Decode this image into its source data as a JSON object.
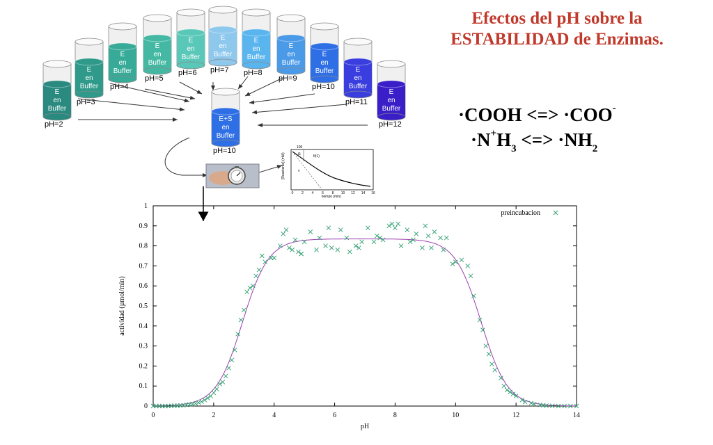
{
  "title": {
    "line1": "Efectos del pH sobre la",
    "line2": "ESTABILIDAD de Enzimas."
  },
  "equations": {
    "eq1": {
      "left": "·COOH <=> ·COO",
      "sup": "-"
    },
    "eq2": {
      "n": "·N",
      "sup": "+",
      "h": "H",
      "sub3": "3",
      "mid": " <=> ·NH",
      "sub2": "2"
    }
  },
  "cylinders": [
    {
      "ph_label": "pH=2",
      "lines": [
        "E",
        "en",
        "Buffer"
      ],
      "color": "#2a8a80"
    },
    {
      "ph_label": "pH=3",
      "lines": [
        "E",
        "en",
        "Buffer"
      ],
      "color": "#2f9a8a"
    },
    {
      "ph_label": "pH=4",
      "lines": [
        "E",
        "en",
        "Buffer"
      ],
      "color": "#38aa98"
    },
    {
      "ph_label": "pH=5",
      "lines": [
        "E",
        "en",
        "Buffer"
      ],
      "color": "#45b8a4"
    },
    {
      "ph_label": "pH=6",
      "lines": [
        "E",
        "en",
        "Buffer"
      ],
      "color": "#5ac8b8"
    },
    {
      "ph_label": "pH=7",
      "lines": [
        "E",
        "en",
        "Buffer"
      ],
      "color": "#8ec8ec"
    },
    {
      "ph_label": "pH=8",
      "lines": [
        "E",
        "en",
        "Buffer"
      ],
      "color": "#5ab4ee"
    },
    {
      "ph_label": "pH=9",
      "lines": [
        "E",
        "en",
        "Buffer"
      ],
      "color": "#4b9ae8"
    },
    {
      "ph_label": "pH=10",
      "lines": [
        "E",
        "en",
        "Buffer"
      ],
      "color": "#2f6fe6"
    },
    {
      "ph_label": "pH=11",
      "lines": [
        "E",
        "en",
        "Buffer"
      ],
      "color": "#3a3ede"
    },
    {
      "ph_label": "pH=12",
      "lines": [
        "E",
        "en",
        "Buffer"
      ],
      "color": "#3a1ec8"
    }
  ],
  "center_cylinder": {
    "ph_label": "pH=10",
    "lines": [
      "E+S",
      "en",
      "Buffer"
    ],
    "color": "#2f6fe6"
  },
  "mini_plot": {
    "ylabel": "[Reactante] (mM)",
    "xlabel": "tiempo (min)",
    "x_ticks": [
      "0",
      "2",
      "4",
      "6",
      "8",
      "10",
      "12",
      "14",
      "16"
    ],
    "y_ticks": [
      "100",
      "80",
      "60",
      "40",
      "20",
      "0"
    ],
    "annot1": "t1",
    "annot2": "f(t1)",
    "annot3": "v"
  },
  "icons": {
    "stopwatch": "stopwatch-hand-photo"
  },
  "chart_data": {
    "type": "scatter",
    "xlabel": "pH",
    "ylabel": "actividad (µmol/min)",
    "xlim": [
      0,
      14
    ],
    "ylim": [
      0,
      1
    ],
    "x_ticks": [
      "0",
      "2",
      "4",
      "6",
      "8",
      "10",
      "12",
      "14"
    ],
    "y_ticks": [
      "0",
      "0.1",
      "0.2",
      "0.3",
      "0.4",
      "0.5",
      "0.6",
      "0.7",
      "0.8",
      "0.9",
      "1"
    ],
    "grid": false,
    "legend_position": "top-right",
    "series": [
      {
        "name": "preincubacion",
        "marker": "x",
        "color": "#2e9e6e",
        "points": [
          [
            0,
            0
          ],
          [
            0.1,
            0
          ],
          [
            0.2,
            0
          ],
          [
            0.3,
            0
          ],
          [
            0.4,
            0
          ],
          [
            0.5,
            0
          ],
          [
            0.6,
            0.001
          ],
          [
            0.7,
            0.002
          ],
          [
            0.8,
            0.002
          ],
          [
            0.9,
            0.003
          ],
          [
            1,
            0.004
          ],
          [
            1.1,
            0.006
          ],
          [
            1.2,
            0.008
          ],
          [
            1.3,
            0.01
          ],
          [
            1.4,
            0.013
          ],
          [
            1.5,
            0.017
          ],
          [
            1.6,
            0.022
          ],
          [
            1.7,
            0.03
          ],
          [
            1.8,
            0.04
          ],
          [
            1.9,
            0.05
          ],
          [
            2,
            0.066
          ],
          [
            2.1,
            0.085
          ],
          [
            2.2,
            0.11
          ],
          [
            2.3,
            0.12
          ],
          [
            2.4,
            0.15
          ],
          [
            2.5,
            0.19
          ],
          [
            2.6,
            0.23
          ],
          [
            2.7,
            0.28
          ],
          [
            2.8,
            0.36
          ],
          [
            2.9,
            0.43
          ],
          [
            3.0,
            0.48
          ],
          [
            3.1,
            0.57
          ],
          [
            3.2,
            0.59
          ],
          [
            3.3,
            0.6
          ],
          [
            3.4,
            0.65
          ],
          [
            3.5,
            0.68
          ],
          [
            3.6,
            0.75
          ],
          [
            3.7,
            0.72
          ],
          [
            3.9,
            0.74
          ],
          [
            4.0,
            0.74
          ],
          [
            4.2,
            0.8
          ],
          [
            4.3,
            0.86
          ],
          [
            4.4,
            0.88
          ],
          [
            4.5,
            0.79
          ],
          [
            4.6,
            0.78
          ],
          [
            4.7,
            0.83
          ],
          [
            4.8,
            0.77
          ],
          [
            4.9,
            0.76
          ],
          [
            5.0,
            0.82
          ],
          [
            5.2,
            0.87
          ],
          [
            5.4,
            0.78
          ],
          [
            5.5,
            0.84
          ],
          [
            5.7,
            0.8
          ],
          [
            5.8,
            0.89
          ],
          [
            5.9,
            0.79
          ],
          [
            6.1,
            0.78
          ],
          [
            6.2,
            0.88
          ],
          [
            6.4,
            0.84
          ],
          [
            6.5,
            0.77
          ],
          [
            6.7,
            0.8
          ],
          [
            6.8,
            0.79
          ],
          [
            6.9,
            0.82
          ],
          [
            7.1,
            0.89
          ],
          [
            7.3,
            0.82
          ],
          [
            7.4,
            0.85
          ],
          [
            7.5,
            0.84
          ],
          [
            7.6,
            0.83
          ],
          [
            7.8,
            0.9
          ],
          [
            7.9,
            0.91
          ],
          [
            8.0,
            0.89
          ],
          [
            8.1,
            0.91
          ],
          [
            8.2,
            0.8
          ],
          [
            8.4,
            0.88
          ],
          [
            8.5,
            0.82
          ],
          [
            8.6,
            0.83
          ],
          [
            8.7,
            0.86
          ],
          [
            8.9,
            0.79
          ],
          [
            9.0,
            0.9
          ],
          [
            9.1,
            0.85
          ],
          [
            9.2,
            0.79
          ],
          [
            9.3,
            0.87
          ],
          [
            9.5,
            0.84
          ],
          [
            9.6,
            0.78
          ],
          [
            9.7,
            0.84
          ],
          [
            9.9,
            0.71
          ],
          [
            10.0,
            0.72
          ],
          [
            10.2,
            0.73
          ],
          [
            10.4,
            0.7
          ],
          [
            10.5,
            0.65
          ],
          [
            10.6,
            0.55
          ],
          [
            10.8,
            0.43
          ],
          [
            10.9,
            0.38
          ],
          [
            11.0,
            0.3
          ],
          [
            11.1,
            0.26
          ],
          [
            11.2,
            0.21
          ],
          [
            11.3,
            0.18
          ],
          [
            11.5,
            0.14
          ],
          [
            11.6,
            0.1
          ],
          [
            11.7,
            0.08
          ],
          [
            11.8,
            0.07
          ],
          [
            11.9,
            0.06
          ],
          [
            12.0,
            0.05
          ],
          [
            12.2,
            0.03
          ],
          [
            12.3,
            0.02
          ],
          [
            12.5,
            0.015
          ],
          [
            12.6,
            0.01
          ],
          [
            12.8,
            0.006
          ],
          [
            12.9,
            0.004
          ],
          [
            13.0,
            0.002
          ],
          [
            13.2,
            0.001
          ],
          [
            13.4,
            0
          ],
          [
            13.6,
            0
          ],
          [
            13.8,
            0
          ],
          [
            14,
            0
          ]
        ]
      },
      {
        "name": "",
        "type": "line",
        "color": "#9b3fb0",
        "model": "bell",
        "plateau": 0.835,
        "pKa1": 2.95,
        "pKa2": 10.85,
        "slope": 2.3
      }
    ]
  }
}
